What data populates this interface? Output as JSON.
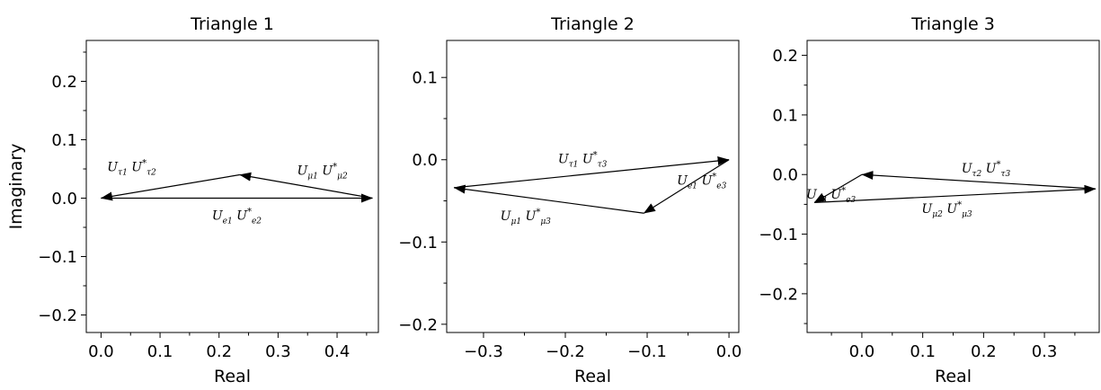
{
  "chart_data": [
    {
      "type": "vector",
      "title": "Triangle 1",
      "xlabel": "Real",
      "ylabel": "Imaginary",
      "xlim": [
        -0.025,
        0.47
      ],
      "ylim": [
        -0.23,
        0.27
      ],
      "xticks": [
        0.0,
        0.1,
        0.2,
        0.3,
        0.4
      ],
      "xtick_labels": [
        "0.0",
        "0.1",
        "0.2",
        "0.3",
        "0.4"
      ],
      "yticks": [
        -0.2,
        -0.1,
        0.0,
        0.1,
        0.2
      ],
      "ytick_labels": [
        "−0.2",
        "−0.1",
        "0.0",
        "0.1",
        "0.2"
      ],
      "grid": false,
      "vectors": [
        {
          "from": [
            0.0,
            0.0
          ],
          "to": [
            0.46,
            0.0
          ],
          "label": {
            "base1": "U",
            "sub1": "e1",
            "base2": "U",
            "sub2": "e2",
            "sup2": "*"
          }
        },
        {
          "from": [
            0.46,
            0.0
          ],
          "to": [
            0.235,
            0.04
          ],
          "label": {
            "base1": "U",
            "sub1": "μ1",
            "base2": "U",
            "sub2": "μ2",
            "sup2": "*"
          }
        },
        {
          "from": [
            0.235,
            0.04
          ],
          "to": [
            0.0,
            0.0
          ],
          "label": {
            "base1": "U",
            "sub1": "τ1",
            "base2": "U",
            "sub2": "τ2",
            "sup2": "*"
          }
        }
      ]
    },
    {
      "type": "vector",
      "title": "Triangle 2",
      "xlabel": "Real",
      "ylabel": "",
      "xlim": [
        -0.345,
        0.012
      ],
      "ylim": [
        -0.21,
        0.145
      ],
      "xticks": [
        -0.3,
        -0.2,
        -0.1,
        0.0
      ],
      "xtick_labels": [
        "−0.3",
        "−0.2",
        "−0.1",
        "0.0"
      ],
      "yticks": [
        -0.2,
        -0.1,
        0.0,
        0.1
      ],
      "ytick_labels": [
        "−0.2",
        "−0.1",
        "0.0",
        "0.1"
      ],
      "grid": false,
      "vectors": [
        {
          "from": [
            -0.336,
            -0.034
          ],
          "to": [
            0.0,
            0.0
          ],
          "label": {
            "base1": "U",
            "sub1": "τ1",
            "base2": "U",
            "sub2": "τ3",
            "sup2": "*"
          }
        },
        {
          "from": [
            0.0,
            0.0
          ],
          "to": [
            -0.104,
            -0.065
          ],
          "label": {
            "base1": "U",
            "sub1": "e1",
            "base2": "U",
            "sub2": "e3",
            "sup2": "*"
          }
        },
        {
          "from": [
            -0.104,
            -0.065
          ],
          "to": [
            -0.336,
            -0.034
          ],
          "label": {
            "base1": "U",
            "sub1": "μ1",
            "base2": "U",
            "sub2": "μ3",
            "sup2": "*"
          }
        }
      ]
    },
    {
      "type": "vector",
      "title": "Triangle 3",
      "xlabel": "Real",
      "ylabel": "",
      "xlim": [
        -0.09,
        0.39
      ],
      "ylim": [
        -0.265,
        0.225
      ],
      "xticks": [
        0.0,
        0.1,
        0.2,
        0.3
      ],
      "xtick_labels": [
        "0.0",
        "0.1",
        "0.2",
        "0.3"
      ],
      "yticks": [
        -0.2,
        -0.1,
        0.0,
        0.1,
        0.2
      ],
      "ytick_labels": [
        "−0.2",
        "−0.1",
        "0.0",
        "0.1",
        "0.2"
      ],
      "grid": false,
      "vectors": [
        {
          "from": [
            0.384,
            -0.024
          ],
          "to": [
            0.0,
            0.0
          ],
          "label": {
            "base1": "U",
            "sub1": "τ2",
            "base2": "U",
            "sub2": "τ3",
            "sup2": "*"
          }
        },
        {
          "from": [
            0.0,
            0.0
          ],
          "to": [
            -0.078,
            -0.047
          ],
          "label": {
            "base1": "U",
            "sub1": "e2",
            "base2": "U",
            "sub2": "e3",
            "sup2": "*"
          }
        },
        {
          "from": [
            -0.078,
            -0.047
          ],
          "to": [
            0.384,
            -0.024
          ],
          "label": {
            "base1": "U",
            "sub1": "μ2",
            "base2": "U",
            "sub2": "μ3",
            "sup2": "*"
          }
        }
      ]
    }
  ]
}
